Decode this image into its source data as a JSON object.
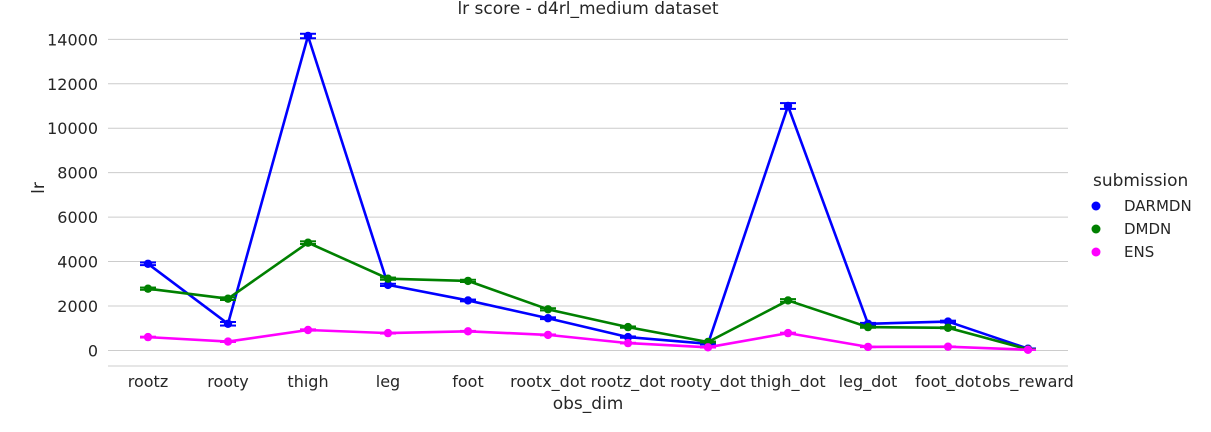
{
  "chart_data": {
    "type": "line",
    "title": "lr score - d4rl_medium dataset",
    "xlabel": "obs_dim",
    "ylabel": "lr",
    "ylim": [
      -700,
      14600
    ],
    "yticks": [
      0,
      2000,
      4000,
      6000,
      8000,
      10000,
      12000,
      14000
    ],
    "grid": true,
    "legend": {
      "title": "submission",
      "placement": "right"
    },
    "categories": [
      "rootz",
      "rooty",
      "thigh",
      "leg",
      "foot",
      "rootx_dot",
      "rootz_dot",
      "rooty_dot",
      "thigh_dot",
      "leg_dot",
      "foot_dot",
      "obs_reward"
    ],
    "series": [
      {
        "name": "DARMDN",
        "color": "#0000ff",
        "values": [
          3900,
          1200,
          14150,
          2950,
          2250,
          1450,
          600,
          300,
          11000,
          1200,
          1300,
          80
        ],
        "errors": [
          60,
          80,
          100,
          50,
          40,
          40,
          30,
          30,
          130,
          40,
          40,
          10
        ]
      },
      {
        "name": "DMDN",
        "color": "#008000",
        "values": [
          2780,
          2330,
          4850,
          3230,
          3130,
          1850,
          1050,
          380,
          2250,
          1050,
          1020,
          50
        ],
        "errors": [
          50,
          60,
          60,
          50,
          50,
          50,
          30,
          20,
          60,
          30,
          30,
          10
        ]
      },
      {
        "name": "ENS",
        "color": "#ff00ff",
        "values": [
          600,
          400,
          920,
          780,
          860,
          700,
          330,
          140,
          780,
          160,
          170,
          30
        ],
        "errors": [
          20,
          20,
          30,
          20,
          20,
          20,
          15,
          10,
          20,
          10,
          10,
          5
        ]
      }
    ]
  }
}
